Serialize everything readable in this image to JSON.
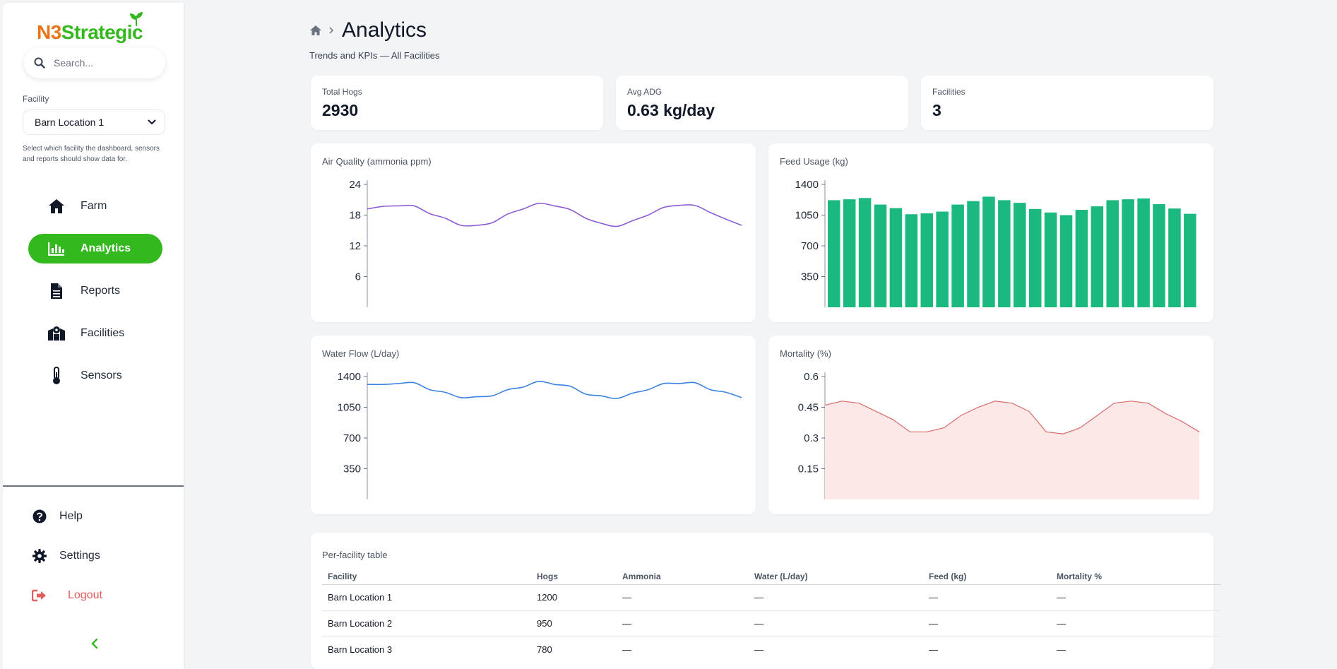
{
  "brand": {
    "name_part1": "N3",
    "name_part2": "Strategic",
    "brand_orange": "#e8751a",
    "brand_green": "#33b81e"
  },
  "search": {
    "placeholder": "Search..."
  },
  "facility": {
    "label": "Facility",
    "selected": "Barn Location 1",
    "help": "Select which facility the dashboard, sensors and reports should show data for."
  },
  "nav": {
    "items": [
      {
        "label": "Farm",
        "icon": "home-icon"
      },
      {
        "label": "Analytics",
        "icon": "chart-bar-icon",
        "active": true
      },
      {
        "label": "Reports",
        "icon": "file-icon"
      },
      {
        "label": "Facilities",
        "icon": "map-marker-icon"
      },
      {
        "label": "Sensors",
        "icon": "thermometer-icon"
      }
    ]
  },
  "bottom_nav": {
    "help": "Help",
    "settings": "Settings",
    "logout": "Logout"
  },
  "header": {
    "title": "Analytics",
    "subtitle": "Trends and KPIs — All Facilities"
  },
  "kpis": [
    {
      "label": "Total Hogs",
      "value": "2930"
    },
    {
      "label": "Avg ADG",
      "value": "0.63 kg/day"
    },
    {
      "label": "Facilities",
      "value": "3"
    }
  ],
  "charts": {
    "air": {
      "title": "Air Quality (ammonia ppm)"
    },
    "feed": {
      "title": "Feed Usage (kg)"
    },
    "water": {
      "title": "Water Flow (L/day)"
    },
    "mortality": {
      "title": "Mortality (%)"
    }
  },
  "chart_data": [
    {
      "type": "line",
      "title": "Air Quality (ammonia ppm)",
      "color": "#8b5cd6",
      "ylim": [
        0,
        24
      ],
      "yticks": [
        "24",
        "18",
        "12",
        "6"
      ],
      "values": [
        19.2,
        19.7,
        19.8,
        19.8,
        18.3,
        17.4,
        16.0,
        16.0,
        16.5,
        18.2,
        19.2,
        20.3,
        19.8,
        19.1,
        17.4,
        16.4,
        15.8,
        16.9,
        18.0,
        19.5,
        19.9,
        19.9,
        18.5,
        17.2,
        16.0
      ]
    },
    {
      "type": "bar",
      "title": "Feed Usage (kg)",
      "color": "#1bb97f",
      "ylim": [
        0,
        1400
      ],
      "yticks": [
        "1400",
        "1050",
        "700",
        "350"
      ],
      "values": [
        1220,
        1230,
        1245,
        1170,
        1130,
        1060,
        1070,
        1090,
        1170,
        1210,
        1260,
        1220,
        1190,
        1120,
        1080,
        1050,
        1110,
        1150,
        1220,
        1230,
        1240,
        1175,
        1125,
        1065
      ]
    },
    {
      "type": "line",
      "title": "Water Flow (L/day)",
      "color": "#3b82e0",
      "ylim": [
        0,
        1400
      ],
      "yticks": [
        "1400",
        "1050",
        "700",
        "350"
      ],
      "values": [
        1310,
        1310,
        1320,
        1330,
        1250,
        1220,
        1160,
        1170,
        1180,
        1250,
        1280,
        1345,
        1310,
        1290,
        1200,
        1180,
        1150,
        1210,
        1250,
        1320,
        1320,
        1330,
        1250,
        1220,
        1160
      ]
    },
    {
      "type": "area",
      "title": "Mortality (%)",
      "color": "#d96a6a",
      "fill": "#fde8e8",
      "ylim": [
        0,
        0.6
      ],
      "yticks": [
        "0.6",
        "0.45",
        "0.3",
        "0.15"
      ],
      "values": [
        0.46,
        0.48,
        0.47,
        0.43,
        0.39,
        0.33,
        0.33,
        0.35,
        0.41,
        0.45,
        0.48,
        0.47,
        0.43,
        0.33,
        0.32,
        0.35,
        0.41,
        0.47,
        0.48,
        0.47,
        0.42,
        0.38,
        0.33
      ]
    }
  ],
  "table": {
    "title": "Per-facility table",
    "columns": [
      "Facility",
      "Hogs",
      "Ammonia",
      "Water (L/day)",
      "Feed (kg)",
      "Mortality %"
    ],
    "rows": [
      [
        "Barn Location 1",
        "1200",
        "—",
        "—",
        "—",
        "—"
      ],
      [
        "Barn Location 2",
        "950",
        "—",
        "—",
        "—",
        "—"
      ],
      [
        "Barn Location 3",
        "780",
        "—",
        "—",
        "—",
        "—"
      ]
    ]
  }
}
